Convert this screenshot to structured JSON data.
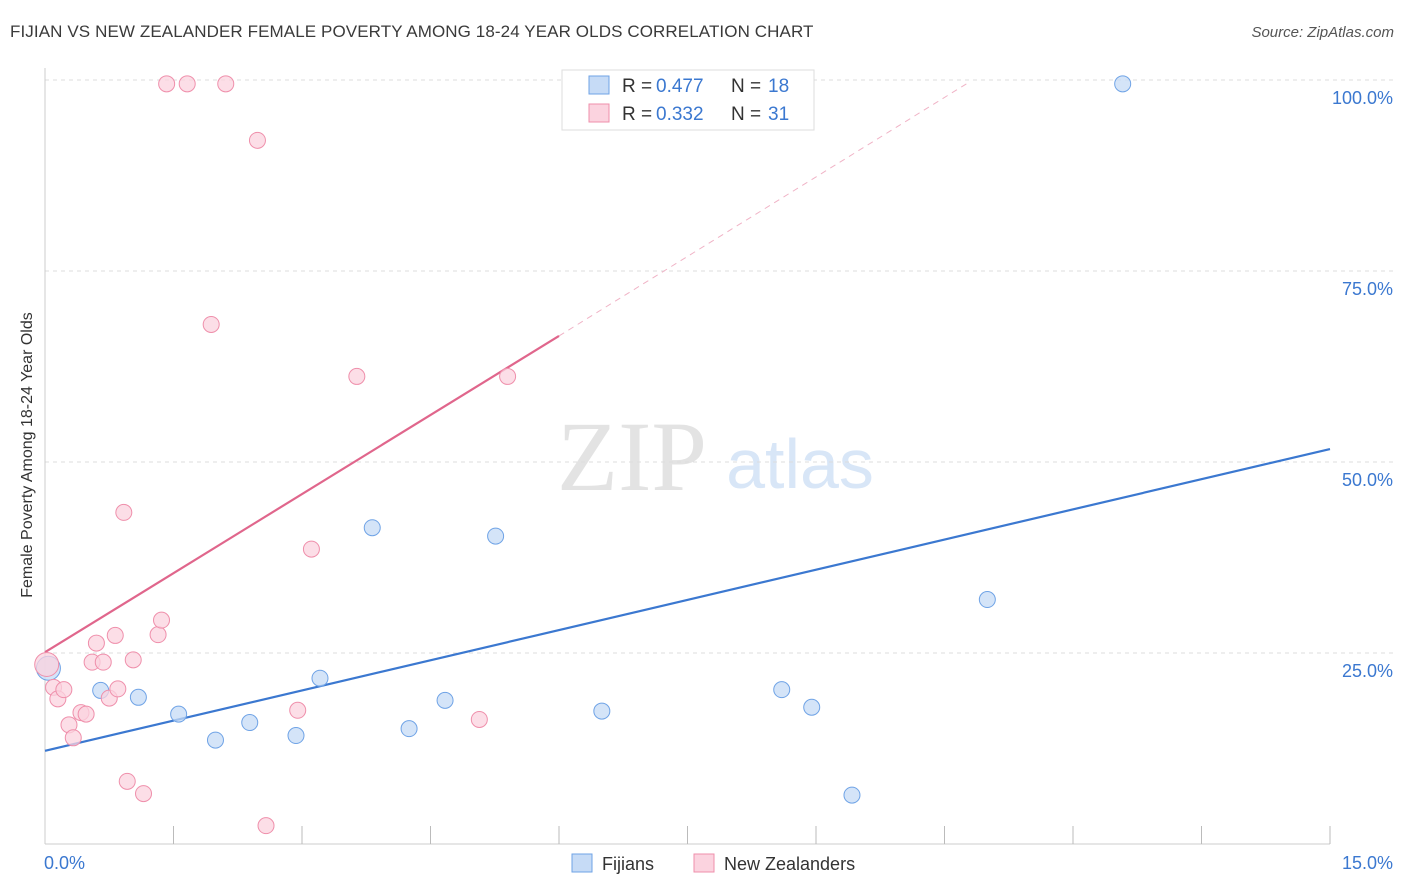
{
  "title": "FIJIAN VS NEW ZEALANDER FEMALE POVERTY AMONG 18-24 YEAR OLDS CORRELATION CHART",
  "source": "Source: ZipAtlas.com",
  "watermark": {
    "zip": "ZIP",
    "atlas": "atlas"
  },
  "chart_data": {
    "type": "scatter",
    "title": "FIJIAN VS NEW ZEALANDER FEMALE POVERTY AMONG 18-24 YEAR OLDS CORRELATION CHART",
    "xlabel": "",
    "ylabel": "Female Poverty Among 18-24 Year Olds",
    "xlim": [
      0,
      15
    ],
    "ylim": [
      0,
      102
    ],
    "x_tick_labels": [
      {
        "value": 0,
        "label": "0.0%"
      },
      {
        "value": 15,
        "label": "15.0%"
      }
    ],
    "y_tick_labels": [
      {
        "value": 100,
        "label": "100.0%"
      },
      {
        "value": 75,
        "label": "75.0%"
      },
      {
        "value": 50,
        "label": "50.0%"
      },
      {
        "value": 25,
        "label": "25.0%"
      }
    ],
    "legend_stats": [
      {
        "r_label": "R =",
        "r": "0.477",
        "n_label": "N =",
        "n": "18"
      },
      {
        "r_label": "R =",
        "r": "0.332",
        "n_label": "N =",
        "n": "31"
      }
    ],
    "series": [
      {
        "name": "Fijians",
        "color": "#6fa3e6",
        "fill": "#c6dbf6",
        "line_color": "#3b78d0",
        "trend": {
          "x0": 0,
          "y0": 12.2,
          "x1": 15,
          "y1": 51.7
        },
        "points": [
          {
            "x": 0.04,
            "y": 23.0
          },
          {
            "x": 0.65,
            "y": 20.1
          },
          {
            "x": 1.09,
            "y": 19.2
          },
          {
            "x": 1.56,
            "y": 17.0
          },
          {
            "x": 1.99,
            "y": 13.6
          },
          {
            "x": 2.39,
            "y": 15.9
          },
          {
            "x": 2.93,
            "y": 14.2
          },
          {
            "x": 3.21,
            "y": 21.7
          },
          {
            "x": 3.82,
            "y": 41.4
          },
          {
            "x": 4.25,
            "y": 15.1
          },
          {
            "x": 4.67,
            "y": 18.8
          },
          {
            "x": 5.26,
            "y": 40.3
          },
          {
            "x": 6.5,
            "y": 17.4
          },
          {
            "x": 8.6,
            "y": 20.2
          },
          {
            "x": 8.95,
            "y": 17.9
          },
          {
            "x": 9.42,
            "y": 6.4
          },
          {
            "x": 11.0,
            "y": 32.0
          },
          {
            "x": 12.58,
            "y": 99.5
          }
        ]
      },
      {
        "name": "New Zealanders",
        "color": "#ef8fab",
        "fill": "#fbd3df",
        "line_color": "#e0668c",
        "trend": {
          "x0": 0,
          "y0": 25.1,
          "x1": 6.0,
          "y1": 66.5
        },
        "trend_ext": {
          "x0": 6.0,
          "y0": 66.5,
          "x1": 10.8,
          "y1": 99.8
        },
        "points": [
          {
            "x": 0.02,
            "y": 23.5
          },
          {
            "x": 0.1,
            "y": 20.5
          },
          {
            "x": 0.15,
            "y": 19.0
          },
          {
            "x": 0.22,
            "y": 20.2
          },
          {
            "x": 0.28,
            "y": 15.6
          },
          {
            "x": 0.33,
            "y": 13.9
          },
          {
            "x": 0.42,
            "y": 17.2
          },
          {
            "x": 0.48,
            "y": 17.0
          },
          {
            "x": 0.55,
            "y": 23.8
          },
          {
            "x": 0.6,
            "y": 26.3
          },
          {
            "x": 0.68,
            "y": 23.8
          },
          {
            "x": 0.75,
            "y": 19.1
          },
          {
            "x": 0.82,
            "y": 27.3
          },
          {
            "x": 0.85,
            "y": 20.3
          },
          {
            "x": 0.92,
            "y": 43.4
          },
          {
            "x": 0.96,
            "y": 8.2
          },
          {
            "x": 1.03,
            "y": 24.1
          },
          {
            "x": 1.15,
            "y": 6.6
          },
          {
            "x": 1.32,
            "y": 27.4
          },
          {
            "x": 1.36,
            "y": 29.3
          },
          {
            "x": 1.42,
            "y": 99.5
          },
          {
            "x": 1.66,
            "y": 99.5
          },
          {
            "x": 1.94,
            "y": 68.0
          },
          {
            "x": 2.11,
            "y": 99.5
          },
          {
            "x": 2.48,
            "y": 92.1
          },
          {
            "x": 2.58,
            "y": 2.4
          },
          {
            "x": 2.95,
            "y": 17.5
          },
          {
            "x": 3.11,
            "y": 38.6
          },
          {
            "x": 3.64,
            "y": 61.2
          },
          {
            "x": 5.07,
            "y": 16.3
          },
          {
            "x": 5.4,
            "y": 61.2
          }
        ]
      }
    ]
  }
}
